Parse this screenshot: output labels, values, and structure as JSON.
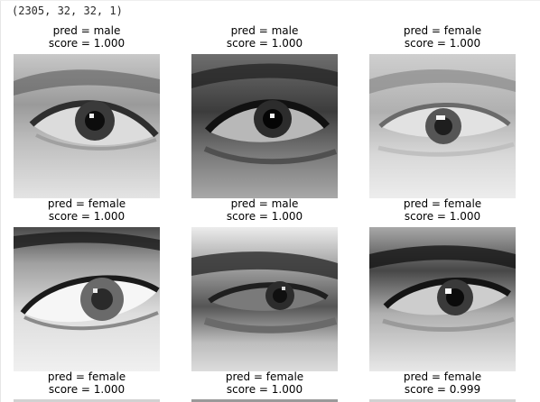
{
  "output": {
    "shape_text": "(2305, 32, 32, 1)"
  },
  "cells": [
    {
      "pred": "pred = male",
      "score": "score = 1.000"
    },
    {
      "pred": "pred = male",
      "score": "score = 1.000"
    },
    {
      "pred": "pred = female",
      "score": "score = 1.000"
    },
    {
      "pred": "pred = female",
      "score": "score = 1.000"
    },
    {
      "pred": "pred = male",
      "score": "score = 1.000"
    },
    {
      "pred": "pred = female",
      "score": "score = 1.000"
    },
    {
      "pred": "pred = female",
      "score": "score = 1.000"
    },
    {
      "pred": "pred = female",
      "score": "score = 1.000"
    },
    {
      "pred": "pred = female",
      "score": "score = 0.999"
    }
  ],
  "colors": {
    "background": "#ffffff",
    "text": "#000000",
    "mono_text": "#2a2a2a"
  }
}
